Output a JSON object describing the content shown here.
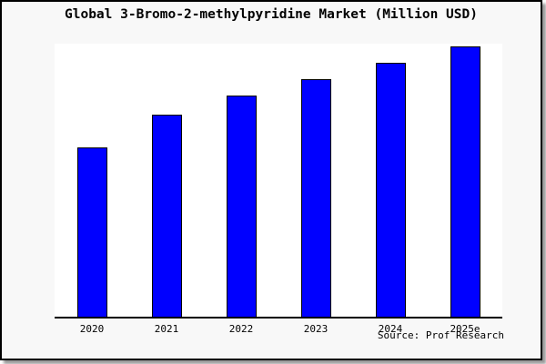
{
  "title": "Global 3-Bromo-2-methylpyridine Market (Million USD)",
  "source_credit": "Source: Prof Research",
  "colors": {
    "bar_fill": "#0000ff",
    "bar_outline": "#000000",
    "panel_background": "#f8f8f8",
    "plot_background": "#ffffff",
    "axis": "#000000",
    "text": "#000000",
    "panel_shadow": "#999999"
  },
  "chart_data": {
    "type": "bar",
    "title": "Global 3-Bromo-2-methylpyridine Market (Million USD)",
    "categories": [
      "2020",
      "2021",
      "2022",
      "2023",
      "2024",
      "2025e"
    ],
    "values": [
      62,
      74,
      81,
      87,
      93,
      99
    ],
    "value_note": "No y-axis scale or data labels are shown in the chart; values are relative bar heights estimated from pixels (percent of plot height).",
    "xlabel": "",
    "ylabel": "",
    "ylim": [
      0,
      100
    ],
    "grid": false,
    "legend": false,
    "bar_color": "#0000ff",
    "source": "Source: Prof Research"
  }
}
